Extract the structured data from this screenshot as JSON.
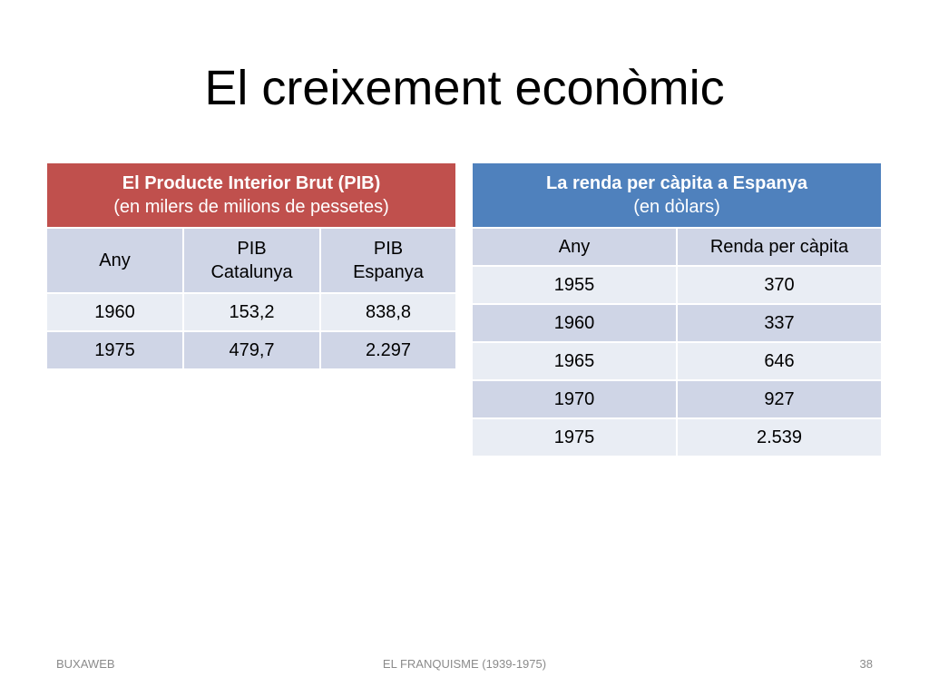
{
  "title": "El creixement econòmic",
  "table1": {
    "title": "El Producte Interior Brut (PIB)",
    "subtitle": "(en milers de milions de pessetes)",
    "columns": [
      [
        "Any"
      ],
      [
        "PIB",
        "Catalunya"
      ],
      [
        "PIB",
        "Espanya"
      ]
    ],
    "rows": [
      [
        "1960",
        "153,2",
        "838,8"
      ],
      [
        "1975",
        "479,7",
        "2.297"
      ]
    ]
  },
  "table2": {
    "title": "La renda per càpita a Espanya",
    "subtitle": "(en dòlars)",
    "columns": [
      [
        "Any"
      ],
      [
        "Renda per càpita"
      ]
    ],
    "rows": [
      [
        "1955",
        "370"
      ],
      [
        "1960",
        "337"
      ],
      [
        "1965",
        "646"
      ],
      [
        "1970",
        "927"
      ],
      [
        "1975",
        "2.539"
      ]
    ]
  },
  "footer": {
    "left": "BUXAWEB",
    "center": "EL FRANQUISME (1939-1975)",
    "right": "38"
  }
}
